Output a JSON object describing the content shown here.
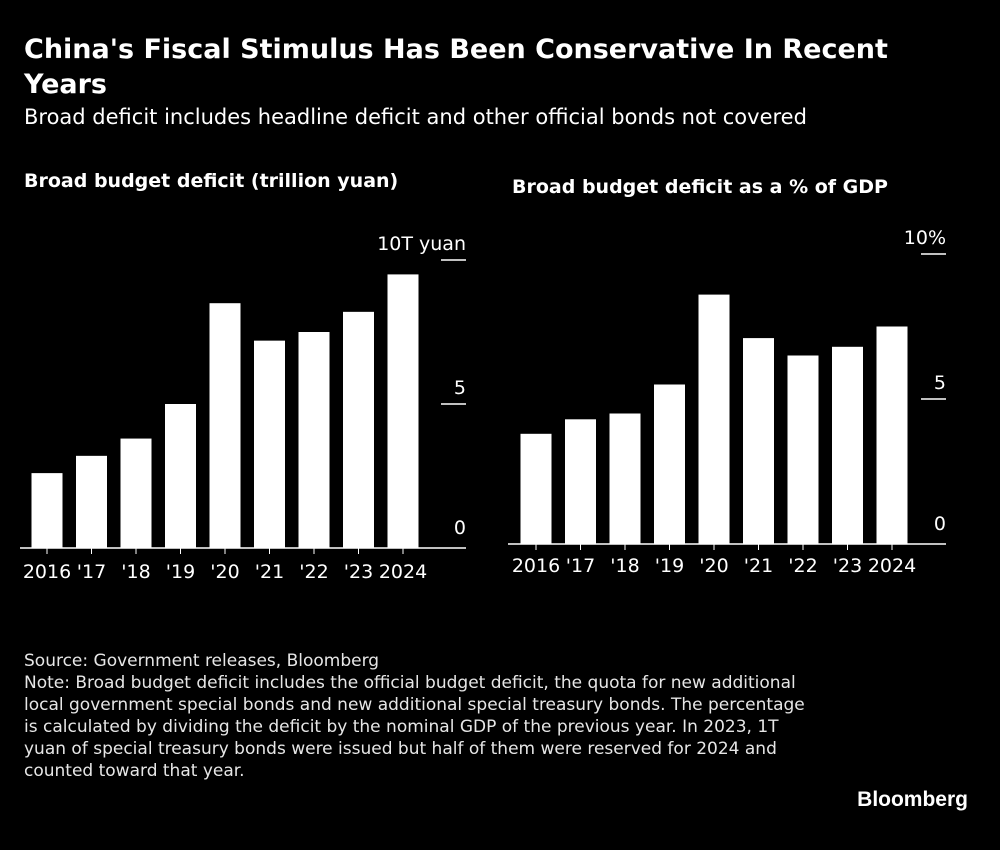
{
  "header": {
    "title": "China's Fiscal Stimulus Has Been Conservative In Recent Years",
    "subtitle": "Broad deficit includes headline deficit and other official bonds not covered"
  },
  "footer": {
    "source": "Source: Government releases, Bloomberg",
    "note": "Note: Broad budget deficit includes the official budget deficit, the quota for new additional local government special bonds and new additional special treasury bonds. The percentage is calculated by dividing the deficit by the nominal GDP of the previous year. In 2023, 1T yuan of special treasury bonds were issued but half of them were reserved for 2024 and counted toward that year."
  },
  "brand": "Bloomberg",
  "colors": {
    "background": "#000000",
    "bars": "#ffffff",
    "text": "#ffffff"
  },
  "chart_data": [
    {
      "type": "bar",
      "title": "Broad budget deficit (trillion yuan)",
      "categories": [
        "2016",
        "'17",
        "'18",
        "'19",
        "'20",
        "'21",
        "'22",
        "'23",
        "2024"
      ],
      "values": [
        2.6,
        3.2,
        3.8,
        5.0,
        8.5,
        7.2,
        7.5,
        8.2,
        9.5
      ],
      "ylim": [
        0,
        10
      ],
      "yticks": [
        0,
        5,
        10
      ],
      "ytick_labels": [
        "0",
        "5",
        "10T yuan"
      ],
      "axis_position": "right",
      "grid": false
    },
    {
      "type": "bar",
      "title": "Broad budget deficit as a % of GDP",
      "categories": [
        "2016",
        "'17",
        "'18",
        "'19",
        "'20",
        "'21",
        "'22",
        "'23",
        "2024"
      ],
      "values": [
        3.8,
        4.3,
        4.5,
        5.5,
        8.6,
        7.1,
        6.5,
        6.8,
        7.5
      ],
      "ylim": [
        0,
        10
      ],
      "yticks": [
        0,
        5,
        10
      ],
      "ytick_labels": [
        "0",
        "5",
        "10%"
      ],
      "axis_position": "right",
      "grid": false
    }
  ]
}
